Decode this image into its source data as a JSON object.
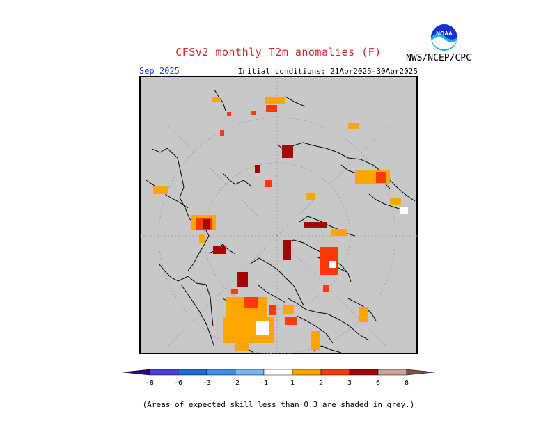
{
  "header": {
    "title": "CFSv2 monthly T2m anomalies (F)",
    "valid_month": "Sep 2025",
    "initial_conditions": "Initial conditions: 21Apr2025-30Apr2025",
    "agency": "NWS/NCEP/CPC",
    "logo_text": "NOAA"
  },
  "colorbar": {
    "ticks": [
      "-8",
      "-6",
      "-3",
      "-2",
      "-1",
      "1",
      "2",
      "3",
      "6",
      "8"
    ],
    "colors": [
      "#2a0a8c",
      "#4b40d6",
      "#1f6bd0",
      "#3a90e8",
      "#79b4f5",
      "#ffffff",
      "#ffa500",
      "#ff3a0a",
      "#a50505",
      "#c9a094",
      "#7a5046"
    ]
  },
  "footnote": "(Areas of expected skill less than 0.3 are shaded in grey.)",
  "map": {
    "background": "#c8c8c8",
    "coast_color": "#000000"
  }
}
